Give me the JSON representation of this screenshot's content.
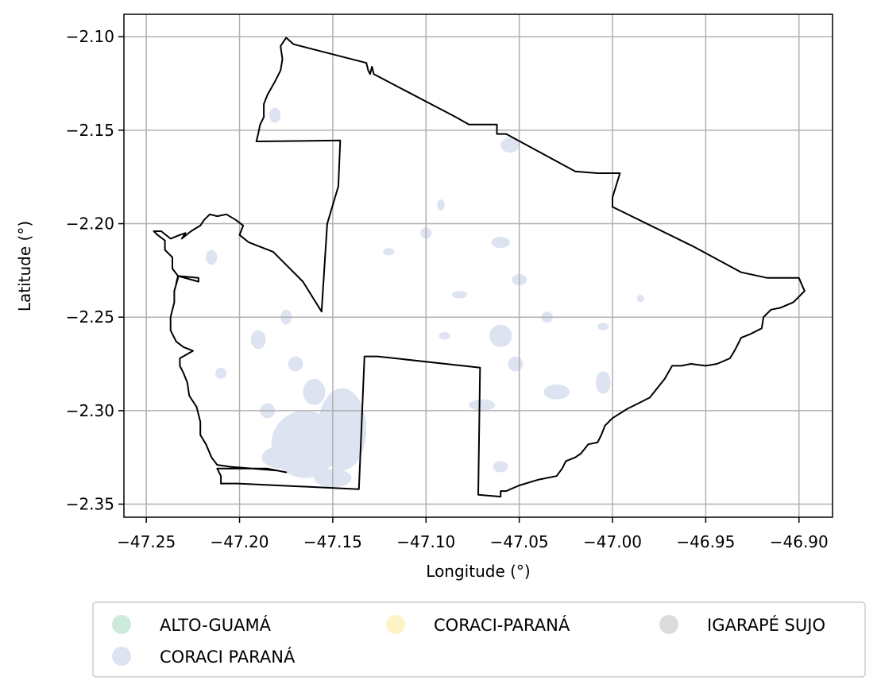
{
  "chart_data": {
    "type": "map",
    "xlabel": "Longitude (°)",
    "ylabel": "Latitude (°)",
    "xlim": [
      -47.262,
      -46.882
    ],
    "ylim": [
      -2.357,
      -2.088
    ],
    "xticks": [
      -47.25,
      -47.2,
      -47.15,
      -47.1,
      -47.05,
      -47.0,
      -46.95,
      -46.9
    ],
    "xtick_labels": [
      "−47.25",
      "−47.20",
      "−47.15",
      "−47.10",
      "−47.05",
      "−47.00",
      "−46.95",
      "−46.90"
    ],
    "yticks": [
      -2.1,
      -2.15,
      -2.2,
      -2.25,
      -2.3,
      -2.35
    ],
    "ytick_labels": [
      "−2.10",
      "−2.15",
      "−2.20",
      "−2.25",
      "−2.30",
      "−2.35"
    ],
    "grid": true,
    "legend_position": "below",
    "legend": [
      {
        "label": "ALTO-GUAMÁ",
        "color": "#cdeadb"
      },
      {
        "label": "CORACI PARANÁ",
        "color": "#dee3f2"
      },
      {
        "label": "CORACI-PARANÁ",
        "color": "#fdf3c7"
      },
      {
        "label": "IGARAPÉ SUJO",
        "color": "#dcdcdc"
      }
    ],
    "boundary_color": "#000000",
    "boundary": [
      [
        -47.175,
        -2.1005
      ],
      [
        -47.171,
        -2.104
      ],
      [
        -47.132,
        -2.114
      ],
      [
        -47.131,
        -2.118
      ],
      [
        -47.13,
        -2.12
      ],
      [
        -47.129,
        -2.116
      ],
      [
        -47.128,
        -2.12
      ],
      [
        -47.084,
        -2.143
      ],
      [
        -47.077,
        -2.147
      ],
      [
        -47.062,
        -2.147
      ],
      [
        -47.062,
        -2.152
      ],
      [
        -47.057,
        -2.152
      ],
      [
        -47.02,
        -2.172
      ],
      [
        -47.008,
        -2.173
      ],
      [
        -46.996,
        -2.173
      ],
      [
        -47.0,
        -2.186
      ],
      [
        -47.0,
        -2.191
      ],
      [
        -46.957,
        -2.212
      ],
      [
        -46.931,
        -2.226
      ],
      [
        -46.917,
        -2.229
      ],
      [
        -46.9,
        -2.229
      ],
      [
        -46.897,
        -2.236
      ],
      [
        -46.903,
        -2.242
      ],
      [
        -46.91,
        -2.245
      ],
      [
        -46.915,
        -2.246
      ],
      [
        -46.919,
        -2.25
      ],
      [
        -46.92,
        -2.256
      ],
      [
        -46.926,
        -2.259
      ],
      [
        -46.931,
        -2.261
      ],
      [
        -46.934,
        -2.267
      ],
      [
        -46.937,
        -2.272
      ],
      [
        -46.944,
        -2.275
      ],
      [
        -46.95,
        -2.276
      ],
      [
        -46.958,
        -2.275
      ],
      [
        -46.963,
        -2.276
      ],
      [
        -46.968,
        -2.276
      ],
      [
        -46.972,
        -2.283
      ],
      [
        -46.976,
        -2.288
      ],
      [
        -46.98,
        -2.293
      ],
      [
        -46.986,
        -2.296
      ],
      [
        -46.992,
        -2.299
      ],
      [
        -47.0,
        -2.304
      ],
      [
        -47.004,
        -2.308
      ],
      [
        -47.006,
        -2.313
      ],
      [
        -47.008,
        -2.317
      ],
      [
        -47.013,
        -2.318
      ],
      [
        -47.017,
        -2.323
      ],
      [
        -47.02,
        -2.325
      ],
      [
        -47.025,
        -2.327
      ],
      [
        -47.027,
        -2.331
      ],
      [
        -47.03,
        -2.335
      ],
      [
        -47.04,
        -2.337
      ],
      [
        -47.05,
        -2.34
      ],
      [
        -47.057,
        -2.343
      ],
      [
        -47.06,
        -2.343
      ],
      [
        -47.06,
        -2.346
      ],
      [
        -47.072,
        -2.345
      ],
      [
        -47.071,
        -2.277
      ],
      [
        -47.126,
        -2.271
      ],
      [
        -47.133,
        -2.271
      ],
      [
        -47.136,
        -2.342
      ],
      [
        -47.201,
        -2.339
      ],
      [
        -47.21,
        -2.339
      ],
      [
        -47.21,
        -2.335
      ],
      [
        -47.212,
        -2.331
      ],
      [
        -47.205,
        -2.331
      ],
      [
        -47.185,
        -2.331
      ],
      [
        -47.175,
        -2.333
      ],
      [
        -47.18,
        -2.332
      ],
      [
        -47.205,
        -2.33
      ],
      [
        -47.212,
        -2.329
      ],
      [
        -47.215,
        -2.325
      ],
      [
        -47.218,
        -2.318
      ],
      [
        -47.221,
        -2.313
      ],
      [
        -47.221,
        -2.306
      ],
      [
        -47.223,
        -2.298
      ],
      [
        -47.227,
        -2.292
      ],
      [
        -47.228,
        -2.285
      ],
      [
        -47.23,
        -2.28
      ],
      [
        -47.232,
        -2.276
      ],
      [
        -47.232,
        -2.272
      ],
      [
        -47.225,
        -2.268
      ],
      [
        -47.23,
        -2.266
      ],
      [
        -47.234,
        -2.263
      ],
      [
        -47.237,
        -2.257
      ],
      [
        -47.237,
        -2.25
      ],
      [
        -47.235,
        -2.242
      ],
      [
        -47.235,
        -2.236
      ],
      [
        -47.233,
        -2.229
      ],
      [
        -47.234,
        -2.232
      ],
      [
        -47.233,
        -2.228
      ],
      [
        -47.222,
        -2.231
      ],
      [
        -47.222,
        -2.229
      ],
      [
        -47.233,
        -2.228
      ],
      [
        -47.236,
        -2.224
      ],
      [
        -47.236,
        -2.218
      ],
      [
        -47.24,
        -2.214
      ],
      [
        -47.24,
        -2.209
      ],
      [
        -47.244,
        -2.206
      ],
      [
        -47.246,
        -2.204
      ],
      [
        -47.242,
        -2.204
      ],
      [
        -47.237,
        -2.208
      ],
      [
        -47.232,
        -2.206
      ],
      [
        -47.229,
        -2.205
      ],
      [
        -47.231,
        -2.208
      ],
      [
        -47.226,
        -2.204
      ],
      [
        -47.221,
        -2.201
      ],
      [
        -47.219,
        -2.198
      ],
      [
        -47.216,
        -2.195
      ],
      [
        -47.212,
        -2.196
      ],
      [
        -47.207,
        -2.195
      ],
      [
        -47.202,
        -2.198
      ],
      [
        -47.198,
        -2.201
      ],
      [
        -47.2,
        -2.206
      ],
      [
        -47.195,
        -2.21
      ],
      [
        -47.182,
        -2.215
      ],
      [
        -47.175,
        -2.222
      ],
      [
        -47.166,
        -2.231
      ],
      [
        -47.156,
        -2.247
      ],
      [
        -47.153,
        -2.2
      ],
      [
        -47.147,
        -2.18
      ],
      [
        -47.146,
        -2.1555
      ],
      [
        -47.191,
        -2.156
      ],
      [
        -47.19,
        -2.152
      ],
      [
        -47.189,
        -2.147
      ],
      [
        -47.187,
        -2.143
      ],
      [
        -47.187,
        -2.136
      ],
      [
        -47.185,
        -2.131
      ],
      [
        -47.181,
        -2.124
      ],
      [
        -47.178,
        -2.118
      ],
      [
        -47.177,
        -2.112
      ],
      [
        -47.178,
        -2.105
      ],
      [
        -47.175,
        -2.1005
      ]
    ],
    "water_patches": [
      {
        "category": "CORACI PARANÁ",
        "lon": -47.165,
        "lat": -2.318,
        "rx": 0.018,
        "ry": 0.018
      },
      {
        "category": "CORACI PARANÁ",
        "lon": -47.145,
        "lat": -2.31,
        "rx": 0.013,
        "ry": 0.022
      },
      {
        "category": "CORACI PARANÁ",
        "lon": -47.178,
        "lat": -2.325,
        "rx": 0.01,
        "ry": 0.006
      },
      {
        "category": "CORACI PARANÁ",
        "lon": -47.15,
        "lat": -2.336,
        "rx": 0.01,
        "ry": 0.005
      },
      {
        "category": "CORACI PARANÁ",
        "lon": -47.16,
        "lat": -2.29,
        "rx": 0.006,
        "ry": 0.007
      },
      {
        "category": "CORACI PARANÁ",
        "lon": -47.19,
        "lat": -2.262,
        "rx": 0.004,
        "ry": 0.005
      },
      {
        "category": "CORACI PARANÁ",
        "lon": -47.175,
        "lat": -2.25,
        "rx": 0.003,
        "ry": 0.004
      },
      {
        "category": "CORACI PARANÁ",
        "lon": -47.06,
        "lat": -2.26,
        "rx": 0.006,
        "ry": 0.006
      },
      {
        "category": "CORACI PARANÁ",
        "lon": -47.052,
        "lat": -2.275,
        "rx": 0.004,
        "ry": 0.004
      },
      {
        "category": "CORACI PARANÁ",
        "lon": -47.05,
        "lat": -2.23,
        "rx": 0.004,
        "ry": 0.003
      },
      {
        "category": "CORACI PARANÁ",
        "lon": -47.06,
        "lat": -2.21,
        "rx": 0.005,
        "ry": 0.003
      },
      {
        "category": "CORACI PARANÁ",
        "lon": -47.082,
        "lat": -2.238,
        "rx": 0.004,
        "ry": 0.002
      },
      {
        "category": "CORACI PARANÁ",
        "lon": -47.03,
        "lat": -2.29,
        "rx": 0.007,
        "ry": 0.004
      },
      {
        "category": "CORACI PARANÁ",
        "lon": -47.005,
        "lat": -2.285,
        "rx": 0.004,
        "ry": 0.006
      },
      {
        "category": "CORACI PARANÁ",
        "lon": -47.092,
        "lat": -2.19,
        "rx": 0.002,
        "ry": 0.003
      },
      {
        "category": "CORACI PARANÁ",
        "lon": -47.055,
        "lat": -2.158,
        "rx": 0.005,
        "ry": 0.004
      },
      {
        "category": "CORACI PARANÁ",
        "lon": -47.07,
        "lat": -2.297,
        "rx": 0.007,
        "ry": 0.003
      },
      {
        "category": "CORACI PARANÁ",
        "lon": -47.06,
        "lat": -2.33,
        "rx": 0.004,
        "ry": 0.003
      },
      {
        "category": "CORACI PARANÁ",
        "lon": -47.17,
        "lat": -2.275,
        "rx": 0.004,
        "ry": 0.004
      },
      {
        "category": "CORACI PARANÁ",
        "lon": -47.215,
        "lat": -2.218,
        "rx": 0.003,
        "ry": 0.004
      },
      {
        "category": "CORACI PARANÁ",
        "lon": -47.09,
        "lat": -2.26,
        "rx": 0.003,
        "ry": 0.002
      },
      {
        "category": "CORACI PARANÁ",
        "lon": -47.035,
        "lat": -2.25,
        "rx": 0.003,
        "ry": 0.003
      },
      {
        "category": "CORACI PARANÁ",
        "lon": -47.185,
        "lat": -2.3,
        "rx": 0.004,
        "ry": 0.004
      },
      {
        "category": "CORACI PARANÁ",
        "lon": -47.21,
        "lat": -2.28,
        "rx": 0.003,
        "ry": 0.003
      },
      {
        "category": "CORACI PARANÁ",
        "lon": -47.12,
        "lat": -2.215,
        "rx": 0.003,
        "ry": 0.002
      },
      {
        "category": "CORACI PARANÁ",
        "lon": -47.1,
        "lat": -2.205,
        "rx": 0.003,
        "ry": 0.003
      },
      {
        "category": "CORACI PARANÁ",
        "lon": -47.005,
        "lat": -2.255,
        "rx": 0.003,
        "ry": 0.002
      },
      {
        "category": "CORACI PARANÁ",
        "lon": -46.985,
        "lat": -2.24,
        "rx": 0.002,
        "ry": 0.002
      },
      {
        "category": "CORACI PARANÁ",
        "lon": -47.181,
        "lat": -2.142,
        "rx": 0.003,
        "ry": 0.004
      }
    ]
  }
}
